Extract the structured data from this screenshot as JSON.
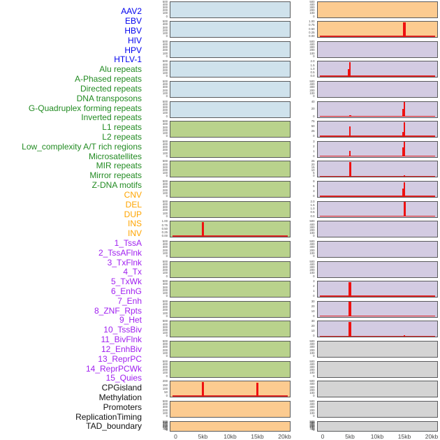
{
  "figure_title": "",
  "groups": {
    "virus": {
      "label_color": "#0000ee",
      "panel_bg": "#cfe2ec"
    },
    "repeat": {
      "label_color": "#228b22",
      "panel_bg": "#b9d28c"
    },
    "sv": {
      "label_color": "#ffa500",
      "panel_bg": "#fccb90"
    },
    "chromhmm": {
      "label_color": "#a020f0",
      "panel_bg": "#d3cbe2"
    },
    "feature": {
      "label_color": "#111111",
      "panel_bg": "#d4d4d4"
    }
  },
  "colors": {
    "signal_red": "#ee1111",
    "baseline_red": "#dd2323",
    "panel_border": "#595a5c",
    "tick_text": "#4a4a4a",
    "background": "#ffffff"
  },
  "chart_data": {
    "type": "area",
    "description": "Faceted signal tracks: red coverage spikes around a 20kb window, 44 tracks in 2 columns of 22 panels",
    "x_unit": "kb",
    "x_range_kb": [
      0,
      20
    ],
    "x_ticks": [
      "0",
      "5kb",
      "10kb",
      "15kb",
      "20kb"
    ],
    "x_tick_kb": [
      0,
      5,
      10,
      15,
      20
    ],
    "columns": 2,
    "rows_per_column": 22,
    "default_yticks": [
      "500",
      "400",
      "300",
      "200",
      "100",
      "0"
    ],
    "tracks": [
      {
        "label": "AAV2",
        "group": "virus",
        "col": 0,
        "row": 0,
        "yticks": [
          "500",
          "400",
          "300",
          "200",
          "100",
          "0"
        ],
        "baseline": false,
        "spikes": []
      },
      {
        "label": "EBV",
        "group": "virus",
        "col": 0,
        "row": 1,
        "yticks": [
          "500",
          "400",
          "300",
          "200",
          "100",
          "0"
        ],
        "baseline": false,
        "spikes": []
      },
      {
        "label": "HBV",
        "group": "virus",
        "col": 0,
        "row": 2,
        "yticks": [
          "500",
          "400",
          "300",
          "200",
          "100",
          "0"
        ],
        "baseline": false,
        "spikes": []
      },
      {
        "label": "HIV",
        "group": "virus",
        "col": 0,
        "row": 3,
        "yticks": [
          "500",
          "400",
          "300",
          "200",
          "100",
          "0"
        ],
        "baseline": false,
        "spikes": []
      },
      {
        "label": "HPV",
        "group": "virus",
        "col": 0,
        "row": 4,
        "yticks": [
          "500",
          "400",
          "300",
          "200",
          "100",
          "0"
        ],
        "baseline": false,
        "spikes": []
      },
      {
        "label": "HTLV-1",
        "group": "virus",
        "col": 0,
        "row": 5,
        "yticks": [
          "500",
          "400",
          "300",
          "200",
          "100",
          "0"
        ],
        "baseline": false,
        "spikes": []
      },
      {
        "label": "Alu repeats",
        "group": "repeat",
        "col": 0,
        "row": 6,
        "yticks": [
          "500",
          "400",
          "300",
          "200",
          "100",
          "0"
        ],
        "baseline": false,
        "spikes": []
      },
      {
        "label": "A-Phased repeats",
        "group": "repeat",
        "col": 0,
        "row": 7,
        "yticks": [
          "500",
          "400",
          "300",
          "200",
          "100",
          "0"
        ],
        "baseline": false,
        "spikes": []
      },
      {
        "label": "Directed repeats",
        "group": "repeat",
        "col": 0,
        "row": 8,
        "yticks": [
          "500",
          "400",
          "300",
          "200",
          "100",
          "0"
        ],
        "baseline": false,
        "spikes": []
      },
      {
        "label": "DNA transposons",
        "group": "repeat",
        "col": 0,
        "row": 9,
        "yticks": [
          "500",
          "400",
          "300",
          "200",
          "100",
          "0"
        ],
        "baseline": false,
        "spikes": []
      },
      {
        "label": "G-Quadruplex forming repeats",
        "group": "repeat",
        "col": 0,
        "row": 10,
        "yticks": [
          "500",
          "400",
          "300",
          "200",
          "100",
          "0"
        ],
        "baseline": false,
        "spikes": []
      },
      {
        "label": "Inverted repeats",
        "group": "repeat",
        "col": 0,
        "row": 11,
        "yticks": [
          "1.00",
          "0.75",
          "0.50",
          "0.25",
          "0.00"
        ],
        "baseline": true,
        "spikes": [
          {
            "kb": 5,
            "value": 1.0,
            "frac": 1.0,
            "w": 2.5
          }
        ]
      },
      {
        "label": "L1 repeats",
        "group": "repeat",
        "col": 0,
        "row": 12,
        "yticks": [
          "500",
          "400",
          "300",
          "200",
          "100",
          "0"
        ],
        "baseline": false,
        "spikes": []
      },
      {
        "label": "L2 repeats",
        "group": "repeat",
        "col": 0,
        "row": 13,
        "yticks": [
          "500",
          "400",
          "300",
          "200",
          "100",
          "0"
        ],
        "baseline": false,
        "spikes": []
      },
      {
        "label": "Low_complexity A/T rich regions",
        "group": "repeat",
        "col": 0,
        "row": 14,
        "yticks": [
          "500",
          "400",
          "300",
          "200",
          "100",
          "0"
        ],
        "baseline": false,
        "spikes": []
      },
      {
        "label": "Microsatellites",
        "group": "repeat",
        "col": 0,
        "row": 15,
        "yticks": [
          "500",
          "400",
          "300",
          "200",
          "100",
          "0"
        ],
        "baseline": false,
        "spikes": []
      },
      {
        "label": "MIR repeats",
        "group": "repeat",
        "col": 0,
        "row": 16,
        "yticks": [
          "500",
          "400",
          "300",
          "200",
          "100",
          "0"
        ],
        "baseline": false,
        "spikes": []
      },
      {
        "label": "Mirror repeats",
        "group": "repeat",
        "col": 0,
        "row": 17,
        "yticks": [
          "500",
          "400",
          "300",
          "200",
          "100",
          "0"
        ],
        "baseline": false,
        "spikes": []
      },
      {
        "label": "Z-DNA motifs",
        "group": "repeat",
        "col": 0,
        "row": 18,
        "yticks": [
          "500",
          "400",
          "300",
          "200",
          "100",
          "0"
        ],
        "baseline": false,
        "spikes": []
      },
      {
        "label": "CNV",
        "group": "sv",
        "col": 0,
        "row": 19,
        "yticks": [
          "200",
          "150",
          "100",
          "50",
          "0"
        ],
        "baseline": true,
        "spikes": [
          {
            "kb": 5,
            "value": 210,
            "frac": 1.0,
            "w": 3
          },
          {
            "kb": 15,
            "value": 195,
            "frac": 0.93,
            "w": 3
          }
        ]
      },
      {
        "label": "DEL",
        "group": "sv",
        "col": 0,
        "row": 20,
        "yticks": [
          "500",
          "400",
          "300",
          "200",
          "100",
          "0"
        ],
        "baseline": false,
        "spikes": []
      },
      {
        "label": "DUP",
        "group": "sv",
        "col": 0,
        "row": 21,
        "yticks": [
          "500",
          "450",
          "400",
          "350",
          "300",
          "250",
          "200",
          "150",
          "100",
          "50",
          "0"
        ],
        "baseline": false,
        "spikes": []
      },
      {
        "label": "INS",
        "group": "sv",
        "col": 1,
        "row": 0,
        "yticks": [
          "500",
          "400",
          "300",
          "200",
          "100",
          "0"
        ],
        "baseline": false,
        "spikes": []
      },
      {
        "label": "INV",
        "group": "sv",
        "col": 1,
        "row": 1,
        "yticks": [
          "1.00",
          "0.75",
          "0.50",
          "0.25",
          "0.00"
        ],
        "baseline": true,
        "spikes": [
          {
            "kb": 15,
            "value": 1.05,
            "frac": 1.0,
            "w": 3.5
          }
        ]
      },
      {
        "label": "1_TssA",
        "group": "chromhmm",
        "col": 1,
        "row": 2,
        "yticks": [
          "500",
          "400",
          "300",
          "200",
          "100",
          "0"
        ],
        "baseline": false,
        "spikes": []
      },
      {
        "label": "2_TssAFlnk",
        "group": "chromhmm",
        "col": 1,
        "row": 3,
        "yticks": [
          "2.0",
          "1.5",
          "1.0",
          "0.5",
          "0.0"
        ],
        "baseline": true,
        "spikes": [
          {
            "kb": 5,
            "value": 2.1,
            "frac": 1.0,
            "w": 2.2
          },
          {
            "kb": 5,
            "dx": -2,
            "value": 1.0,
            "frac": 0.5,
            "w": 2,
            "shoulder": true
          }
        ]
      },
      {
        "label": "3_TxFlnk",
        "group": "chromhmm",
        "col": 1,
        "row": 4,
        "yticks": [
          "500",
          "400",
          "300",
          "200",
          "100",
          "0"
        ],
        "baseline": false,
        "spikes": []
      },
      {
        "label": "4_Tx",
        "group": "chromhmm",
        "col": 1,
        "row": 5,
        "yticks": [
          "40",
          "20",
          "0"
        ],
        "baseline": true,
        "spikes": [
          {
            "kb": 5,
            "value": 4,
            "frac": 0.09,
            "w": 3
          },
          {
            "kb": 15,
            "value": 46,
            "frac": 1.0,
            "w": 2.2
          },
          {
            "kb": 15,
            "dx": -2,
            "value": 25,
            "frac": 0.55,
            "w": 1.6,
            "shoulder": true
          }
        ]
      },
      {
        "label": "5_TxWk",
        "group": "chromhmm",
        "col": 1,
        "row": 6,
        "yticks": [
          "75",
          "50",
          "25",
          "0"
        ],
        "baseline": true,
        "spikes": [
          {
            "kb": 5,
            "value": 56,
            "frac": 0.7,
            "w": 2.5
          },
          {
            "kb": 15,
            "value": 82,
            "frac": 1.0,
            "w": 2.2
          },
          {
            "kb": 15,
            "dx": -2,
            "value": 24,
            "frac": 0.3,
            "w": 1.6,
            "shoulder": true
          }
        ]
      },
      {
        "label": "6_EnhG",
        "group": "chromhmm",
        "col": 1,
        "row": 7,
        "yticks": [
          "3",
          "2",
          "1",
          "0"
        ],
        "baseline": true,
        "spikes": [
          {
            "kb": 5,
            "value": 1.2,
            "frac": 0.38,
            "w": 2.5
          },
          {
            "kb": 15,
            "value": 3.2,
            "frac": 1.0,
            "w": 2.2
          },
          {
            "kb": 15,
            "dx": -2,
            "value": 2.0,
            "frac": 0.62,
            "w": 1.8,
            "shoulder": true
          }
        ]
      },
      {
        "label": "7_Enh",
        "group": "chromhmm",
        "col": 1,
        "row": 8,
        "yticks": [
          "25",
          "20",
          "15",
          "10",
          "5",
          "0"
        ],
        "baseline": true,
        "spikes": [
          {
            "kb": 5,
            "value": 26,
            "frac": 1.0,
            "w": 3
          },
          {
            "kb": 15,
            "value": 2.6,
            "frac": 0.1,
            "w": 2.5
          }
        ]
      },
      {
        "label": "8_ZNF_Rpts",
        "group": "chromhmm",
        "col": 1,
        "row": 9,
        "yticks": [
          "9",
          "6",
          "3",
          "0"
        ],
        "baseline": true,
        "spikes": [
          {
            "kb": 15,
            "value": 9.6,
            "frac": 1.0,
            "w": 2.8
          },
          {
            "kb": 15,
            "dx": -2.2,
            "value": 5,
            "frac": 0.55,
            "w": 1.6,
            "shoulder": true
          }
        ]
      },
      {
        "label": "9_Het",
        "group": "chromhmm",
        "col": 1,
        "row": 10,
        "yticks": [
          "2.0",
          "1.5",
          "1.0",
          "0.5",
          "0.0"
        ],
        "baseline": true,
        "spikes": [
          {
            "kb": 15,
            "value": 2.1,
            "frac": 1.0,
            "w": 3
          }
        ]
      },
      {
        "label": "10_TssBiv",
        "group": "chromhmm",
        "col": 1,
        "row": 11,
        "yticks": [
          "500",
          "400",
          "300",
          "200",
          "100",
          "0"
        ],
        "baseline": false,
        "spikes": []
      },
      {
        "label": "11_BivFlnk",
        "group": "chromhmm",
        "col": 1,
        "row": 12,
        "yticks": [
          "500",
          "400",
          "300",
          "200",
          "100",
          "0"
        ],
        "baseline": false,
        "spikes": []
      },
      {
        "label": "12_EnhBiv",
        "group": "chromhmm",
        "col": 1,
        "row": 13,
        "yticks": [
          "500",
          "400",
          "300",
          "200",
          "100",
          "0"
        ],
        "baseline": false,
        "spikes": []
      },
      {
        "label": "13_ReprPC",
        "group": "chromhmm",
        "col": 1,
        "row": 14,
        "yticks": [
          "3",
          "2",
          "1",
          "0"
        ],
        "baseline": true,
        "spikes": [
          {
            "kb": 5,
            "value": 3.2,
            "frac": 1.0,
            "w": 3.2
          }
        ]
      },
      {
        "label": "14_ReprPCWk",
        "group": "chromhmm",
        "col": 1,
        "row": 15,
        "yticks": [
          "30",
          "20",
          "10",
          "0"
        ],
        "baseline": true,
        "spikes": [
          {
            "kb": 5,
            "value": 32,
            "frac": 1.0,
            "w": 3.2
          }
        ]
      },
      {
        "label": "15_Quies",
        "group": "chromhmm",
        "col": 1,
        "row": 16,
        "yticks": [
          "30",
          "20",
          "10",
          "0"
        ],
        "baseline": true,
        "spikes": [
          {
            "kb": 5,
            "value": 32,
            "frac": 1.0,
            "w": 3.2
          },
          {
            "kb": 15,
            "value": 2.5,
            "frac": 0.08,
            "w": 2.5
          }
        ]
      },
      {
        "label": "CPGisland",
        "group": "feature",
        "col": 1,
        "row": 17,
        "yticks": [
          "500",
          "400",
          "300",
          "200",
          "100",
          "0"
        ],
        "baseline": false,
        "spikes": []
      },
      {
        "label": "Methylation",
        "group": "feature",
        "col": 1,
        "row": 18,
        "yticks": [
          "500",
          "400",
          "300",
          "200",
          "100",
          "0"
        ],
        "baseline": false,
        "spikes": []
      },
      {
        "label": "Promoters",
        "group": "feature",
        "col": 1,
        "row": 19,
        "yticks": [
          "500",
          "400",
          "300",
          "200",
          "100",
          "0"
        ],
        "baseline": false,
        "spikes": []
      },
      {
        "label": "ReplicationTiming",
        "group": "feature",
        "col": 1,
        "row": 20,
        "yticks": [
          "500",
          "400",
          "300",
          "200",
          "100",
          "0"
        ],
        "baseline": false,
        "spikes": []
      },
      {
        "label": "TAD_boundary",
        "group": "feature",
        "col": 1,
        "row": 21,
        "yticks": [
          "500",
          "450",
          "400",
          "350",
          "300",
          "250",
          "200",
          "150",
          "100",
          "50",
          "0"
        ],
        "baseline": false,
        "spikes": []
      }
    ]
  }
}
